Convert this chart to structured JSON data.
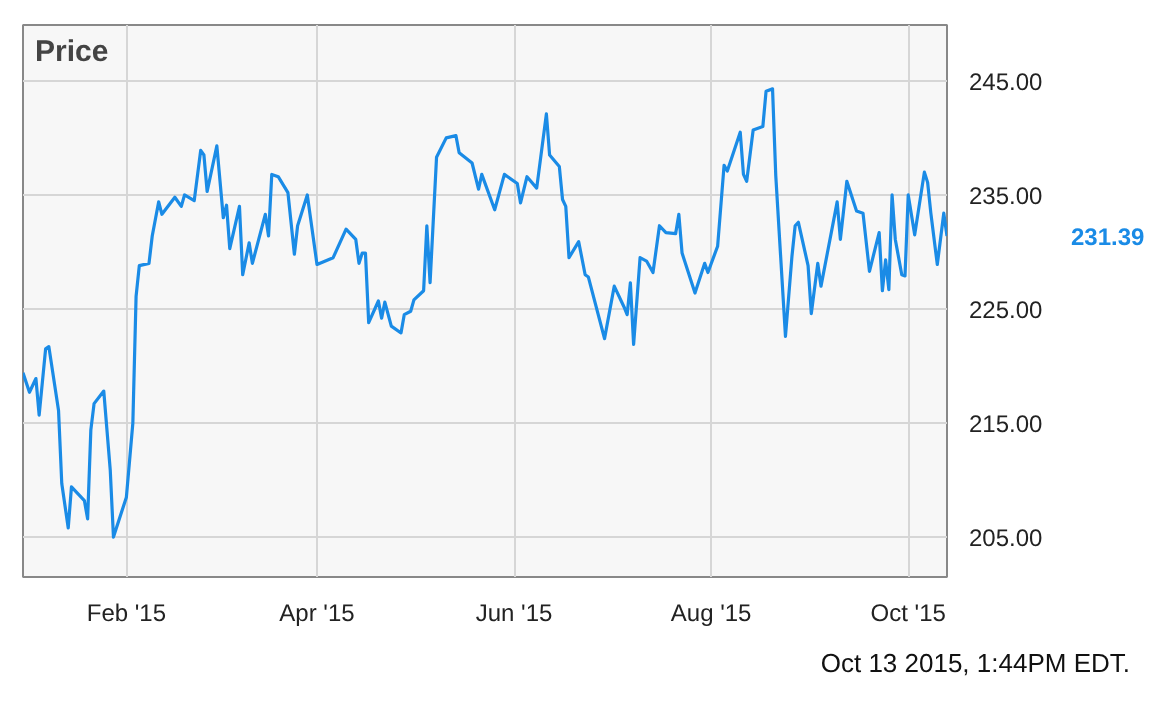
{
  "chart_data": {
    "type": "line",
    "title": "Price",
    "x": [
      "2014-12-31",
      "2015-01-02",
      "2015-01-04",
      "2015-01-05",
      "2015-01-07",
      "2015-01-08",
      "2015-01-11",
      "2015-01-12",
      "2015-01-14",
      "2015-01-15",
      "2015-01-19",
      "2015-01-20",
      "2015-01-21",
      "2015-01-22",
      "2015-01-25",
      "2015-01-27",
      "2015-01-28",
      "2015-02-01",
      "2015-02-03",
      "2015-02-04",
      "2015-02-05",
      "2015-02-08",
      "2015-02-09",
      "2015-02-11",
      "2015-02-12",
      "2015-02-16",
      "2015-02-18",
      "2015-02-19",
      "2015-02-22",
      "2015-02-24",
      "2015-02-25",
      "2015-02-26",
      "2015-03-01",
      "2015-03-03",
      "2015-03-04",
      "2015-03-05",
      "2015-03-08",
      "2015-03-09",
      "2015-03-11",
      "2015-03-12",
      "2015-03-16",
      "2015-03-17",
      "2015-03-18",
      "2015-03-20",
      "2015-03-23",
      "2015-03-25",
      "2015-03-26",
      "2015-03-29",
      "2015-04-01",
      "2015-04-06",
      "2015-04-10",
      "2015-04-13",
      "2015-04-14",
      "2015-04-15",
      "2015-04-16",
      "2015-04-17",
      "2015-04-20",
      "2015-04-21",
      "2015-04-22",
      "2015-04-24",
      "2015-04-27",
      "2015-04-28",
      "2015-04-30",
      "2015-05-01",
      "2015-05-04",
      "2015-05-05",
      "2015-05-06",
      "2015-05-08",
      "2015-05-11",
      "2015-05-14",
      "2015-05-15",
      "2015-05-19",
      "2015-05-21",
      "2015-05-22",
      "2015-05-26",
      "2015-05-29",
      "2015-06-02",
      "2015-06-03",
      "2015-06-05",
      "2015-06-08",
      "2015-06-11",
      "2015-06-12",
      "2015-06-15",
      "2015-06-16",
      "2015-06-17",
      "2015-06-18",
      "2015-06-21",
      "2015-06-23",
      "2015-06-24",
      "2015-06-29",
      "2015-07-02",
      "2015-07-05",
      "2015-07-06",
      "2015-07-07",
      "2015-07-08",
      "2015-07-10",
      "2015-07-12",
      "2015-07-14",
      "2015-07-16",
      "2015-07-18",
      "2015-07-21",
      "2015-07-22",
      "2015-07-23",
      "2015-07-27",
      "2015-07-30",
      "2015-07-31",
      "2015-08-03",
      "2015-08-05",
      "2015-08-06",
      "2015-08-10",
      "2015-08-11",
      "2015-08-12",
      "2015-08-14",
      "2015-08-17",
      "2015-08-18",
      "2015-08-20",
      "2015-08-21",
      "2015-08-24",
      "2015-08-26",
      "2015-08-27",
      "2015-08-28",
      "2015-08-31",
      "2015-09-01",
      "2015-09-03",
      "2015-09-04",
      "2015-09-08",
      "2015-09-09",
      "2015-09-10",
      "2015-09-12",
      "2015-09-15",
      "2015-09-17",
      "2015-09-19",
      "2015-09-22",
      "2015-09-23",
      "2015-09-24",
      "2015-09-25",
      "2015-09-26",
      "2015-09-27",
      "2015-09-29",
      "2015-09-30",
      "2015-10-01",
      "2015-10-03",
      "2015-10-06",
      "2015-10-07",
      "2015-10-08",
      "2015-10-10",
      "2015-10-12",
      "2015-10-13"
    ],
    "series": [
      {
        "color": "#1a8be6",
        "values": [
          219.4,
          217.7,
          218.9,
          215.7,
          221.5,
          221.7,
          216.1,
          209.7,
          205.8,
          209.4,
          208.2,
          206.6,
          214.4,
          216.7,
          217.8,
          210.9,
          205.0,
          208.5,
          215.0,
          226.1,
          228.8,
          229.0,
          231.4,
          234.4,
          233.3,
          234.8,
          234.0,
          235.0,
          234.5,
          238.9,
          238.5,
          235.3,
          239.3,
          233.0,
          234.1,
          230.3,
          234.0,
          228.0,
          230.8,
          229.0,
          233.3,
          231.4,
          236.8,
          236.6,
          235.2,
          229.8,
          232.3,
          235.0,
          228.9,
          229.5,
          232.0,
          231.1,
          229.0,
          229.9,
          229.9,
          223.8,
          225.7,
          224.2,
          225.6,
          223.5,
          222.9,
          224.5,
          224.8,
          225.8,
          226.6,
          232.3,
          227.3,
          238.3,
          240.0,
          240.2,
          238.7,
          237.8,
          235.5,
          236.8,
          233.7,
          236.8,
          236.0,
          234.3,
          236.6,
          235.6,
          242.1,
          238.5,
          237.5,
          234.6,
          234.0,
          229.5,
          230.9,
          228.0,
          227.8,
          222.4,
          227.0,
          225.2,
          224.5,
          227.3,
          221.9,
          229.5,
          229.2,
          228.2,
          232.3,
          231.7,
          231.6,
          233.3,
          229.9,
          226.4,
          229.0,
          228.2,
          230.5,
          237.6,
          237.1,
          240.5,
          236.8,
          236.2,
          240.7,
          241.0,
          244.1,
          244.3,
          236.7,
          222.6,
          229.6,
          232.3,
          232.6,
          228.8,
          224.6,
          229.0,
          227.0,
          232.9,
          234.4,
          231.1,
          236.2,
          233.6,
          233.4,
          228.3,
          231.7,
          226.6,
          229.3,
          226.7,
          235.0,
          231.1,
          228.0,
          227.9,
          235.0,
          231.5,
          237.0,
          236.1,
          233.4,
          228.9,
          233.4,
          231.39
        ]
      }
    ],
    "xlim": [
      "2014-12-31",
      "2015-10-13"
    ],
    "xticks": [
      {
        "value": "2015-02-01",
        "label": "Feb '15"
      },
      {
        "value": "2015-04-01",
        "label": "Apr '15"
      },
      {
        "value": "2015-06-01",
        "label": "Jun '15"
      },
      {
        "value": "2015-08-01",
        "label": "Aug '15"
      },
      {
        "value": "2015-10-01",
        "label": "Oct '15"
      }
    ],
    "ylim": [
      201.5,
      249.9
    ],
    "yticks": [
      {
        "value": 205,
        "label": "205.00"
      },
      {
        "value": 215,
        "label": "215.00"
      },
      {
        "value": 225,
        "label": "225.00"
      },
      {
        "value": 235,
        "label": "235.00"
      },
      {
        "value": 245,
        "label": "245.00"
      }
    ],
    "annotations": [
      "231.39",
      "Oct 13 2015, 1:44PM EDT."
    ],
    "grid": true,
    "marker": "none",
    "line_style": "solid"
  }
}
